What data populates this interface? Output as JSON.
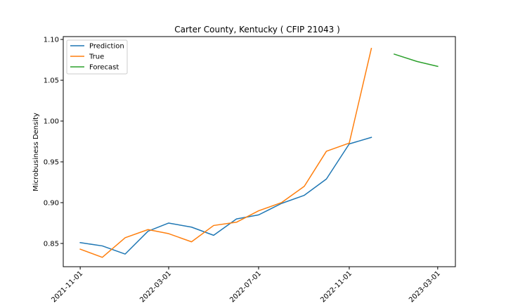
{
  "chart_data": {
    "type": "line",
    "title": "Carter County, Kentucky ( CFIP 21043 )",
    "xlabel": "",
    "ylabel": "Microbusiness Density",
    "x_axis": {
      "type": "date",
      "range": [
        "2021-10-09",
        "2023-03-25"
      ],
      "ticks": [
        "2021-11-01",
        "2022-03-01",
        "2022-07-01",
        "2022-11-01",
        "2023-03-01"
      ]
    },
    "y_axis": {
      "range": [
        0.8215,
        1.1035
      ],
      "ticks": [
        "0.85",
        "0.90",
        "0.95",
        "1.00",
        "1.05",
        "1.10"
      ]
    },
    "grid": false,
    "legend": "top-left",
    "series": [
      {
        "name": "Prediction",
        "color": "#1f77b4",
        "x": [
          "2021-11-01",
          "2021-12-01",
          "2022-01-01",
          "2022-02-01",
          "2022-03-01",
          "2022-04-01",
          "2022-05-01",
          "2022-06-01",
          "2022-07-01",
          "2022-08-01",
          "2022-09-01",
          "2022-10-01",
          "2022-11-01",
          "2022-12-01"
        ],
        "y": [
          0.851,
          0.847,
          0.837,
          0.865,
          0.875,
          0.87,
          0.86,
          0.88,
          0.885,
          0.899,
          0.909,
          0.929,
          0.972,
          0.98
        ]
      },
      {
        "name": "True",
        "color": "#ff7f0e",
        "x": [
          "2021-11-01",
          "2021-12-01",
          "2022-01-01",
          "2022-02-01",
          "2022-03-01",
          "2022-04-01",
          "2022-05-01",
          "2022-06-01",
          "2022-07-01",
          "2022-08-01",
          "2022-09-01",
          "2022-10-01",
          "2022-11-01",
          "2022-12-01"
        ],
        "y": [
          0.843,
          0.833,
          0.857,
          0.867,
          0.862,
          0.852,
          0.872,
          0.876,
          0.89,
          0.9,
          0.92,
          0.963,
          0.973,
          1.089
        ]
      },
      {
        "name": "Forecast",
        "color": "#2ca02c",
        "x": [
          "2023-01-01",
          "2023-02-01",
          "2023-03-01"
        ],
        "y": [
          1.082,
          1.073,
          1.067
        ]
      }
    ]
  }
}
